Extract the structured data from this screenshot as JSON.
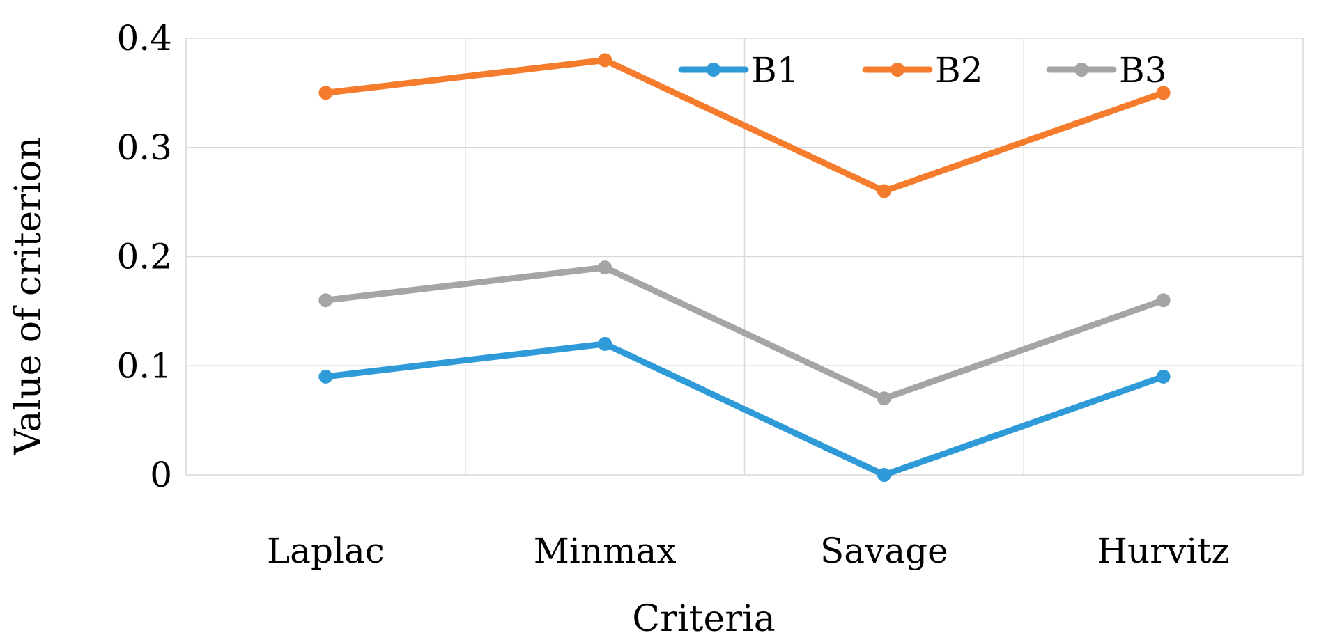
{
  "chart_data": {
    "type": "line",
    "title": "",
    "xlabel": "Criteria",
    "ylabel": "Value of criterion",
    "categories": [
      "Laplac",
      "Minmax",
      "Savage",
      "Hurvitz"
    ],
    "ylim": [
      0,
      0.4
    ],
    "yticks": [
      0,
      0.1,
      0.2,
      0.3,
      0.4
    ],
    "ytick_labels": [
      "0",
      "0.1",
      "0.2",
      "0.3",
      "0.4"
    ],
    "grid": true,
    "legend_position": "top-right",
    "series": [
      {
        "name": "B1",
        "color": "#2e9bd8",
        "values": [
          0.09,
          0.12,
          0.0,
          0.09
        ]
      },
      {
        "name": "B2",
        "color": "#f47c2c",
        "values": [
          0.35,
          0.38,
          0.26,
          0.35
        ]
      },
      {
        "name": "B3",
        "color": "#a5a5a5",
        "values": [
          0.16,
          0.19,
          0.07,
          0.16
        ]
      }
    ]
  }
}
